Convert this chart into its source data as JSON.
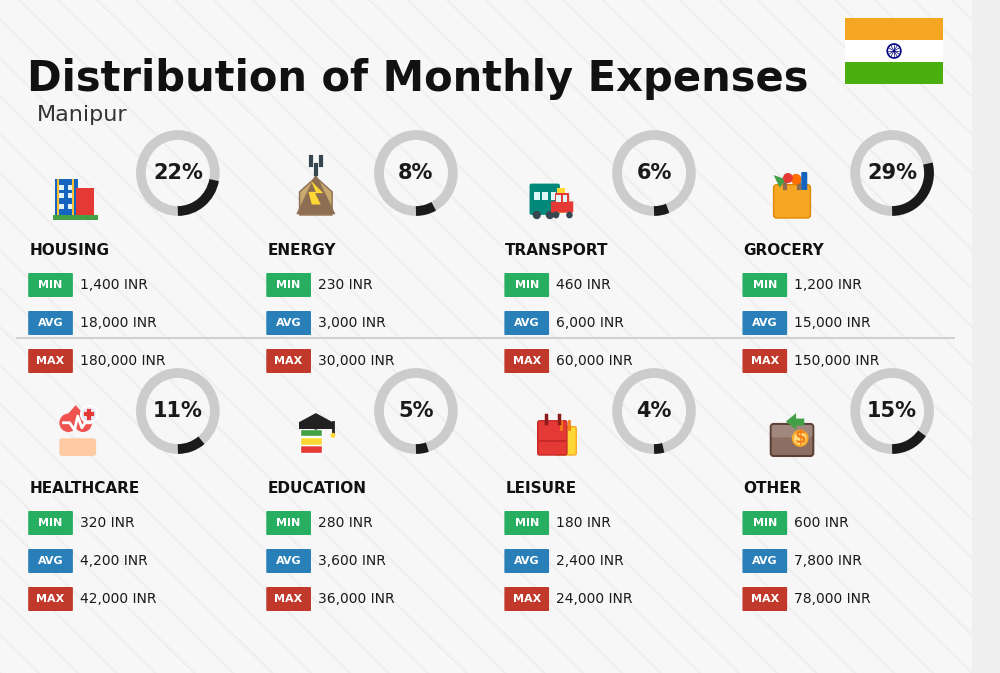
{
  "title": "Distribution of Monthly Expenses",
  "subtitle": "Manipur",
  "background_color": "#efefef",
  "categories": [
    {
      "name": "HOUSING",
      "percent": 22,
      "min": "1,400 INR",
      "avg": "18,000 INR",
      "max": "180,000 INR",
      "row": 0,
      "col": 0
    },
    {
      "name": "ENERGY",
      "percent": 8,
      "min": "230 INR",
      "avg": "3,000 INR",
      "max": "30,000 INR",
      "row": 0,
      "col": 1
    },
    {
      "name": "TRANSPORT",
      "percent": 6,
      "min": "460 INR",
      "avg": "6,000 INR",
      "max": "60,000 INR",
      "row": 0,
      "col": 2
    },
    {
      "name": "GROCERY",
      "percent": 29,
      "min": "1,200 INR",
      "avg": "15,000 INR",
      "max": "150,000 INR",
      "row": 0,
      "col": 3
    },
    {
      "name": "HEALTHCARE",
      "percent": 11,
      "min": "320 INR",
      "avg": "4,200 INR",
      "max": "42,000 INR",
      "row": 1,
      "col": 0
    },
    {
      "name": "EDUCATION",
      "percent": 5,
      "min": "280 INR",
      "avg": "3,600 INR",
      "max": "36,000 INR",
      "row": 1,
      "col": 1
    },
    {
      "name": "LEISURE",
      "percent": 4,
      "min": "180 INR",
      "avg": "2,400 INR",
      "max": "24,000 INR",
      "row": 1,
      "col": 2
    },
    {
      "name": "OTHER",
      "percent": 15,
      "min": "600 INR",
      "avg": "7,800 INR",
      "max": "78,000 INR",
      "row": 1,
      "col": 3
    }
  ],
  "color_min": "#27ae60",
  "color_avg": "#2980b9",
  "color_max": "#c0392b",
  "color_arc_filled": "#1a1a1a",
  "color_arc_empty": "#cccccc",
  "india_flag_orange": "#f5a623",
  "india_flag_white": "#FFFFFF",
  "india_flag_green": "#4caf10",
  "stripe_color": "#ffffff",
  "divider_color": "#d0d0d0"
}
